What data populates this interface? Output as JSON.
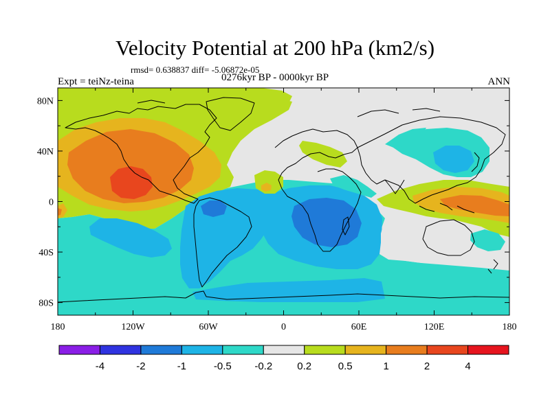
{
  "figure": {
    "title": "Velocity Potential at 200 hPa (km2/s)",
    "stats": "rmsd= 0.638837 diff= -5.06872e-05",
    "left_string": "Expt = teiNz-teina",
    "center_string": "0276kyr BP - 0000kyr BP",
    "right_string": "ANN"
  },
  "map": {
    "projection": "cylindrical equidistant",
    "lon_range": [
      -180,
      180
    ],
    "lat_range": [
      -90,
      90
    ],
    "lon_ticks": [
      {
        "value": -180,
        "label": "180"
      },
      {
        "value": -120,
        "label": "120W"
      },
      {
        "value": -60,
        "label": "60W"
      },
      {
        "value": 0,
        "label": "0"
      },
      {
        "value": 60,
        "label": "60E"
      },
      {
        "value": 120,
        "label": "120E"
      },
      {
        "value": 180,
        "label": "180"
      }
    ],
    "lat_ticks": [
      {
        "value": 80,
        "label": "80N"
      },
      {
        "value": 40,
        "label": "40N"
      },
      {
        "value": 0,
        "label": "0"
      },
      {
        "value": -40,
        "label": "40S"
      },
      {
        "value": -80,
        "label": "80S"
      }
    ],
    "fields": [
      {
        "name": "eastern-pacific-maximum",
        "level": "1 to 2",
        "lon": -125,
        "lat": 10
      },
      {
        "name": "south-atlantic-minimum",
        "level": "-0.5 to -1",
        "lon": -45,
        "lat": -5
      },
      {
        "name": "indian-ocean-minimum",
        "level": "-1 to -2",
        "lon": 40,
        "lat": -15
      },
      {
        "name": "western-pacific-maximum",
        "level": "0.5 to 1",
        "lon": 160,
        "lat": 0
      },
      {
        "name": "east-asia-minimum",
        "level": "-0.2 to -0.5",
        "lon": 125,
        "lat": 35
      }
    ]
  },
  "colorbar": {
    "colors": [
      "#8a1ee6",
      "#2f33e0",
      "#1f7ad8",
      "#1eb4e6",
      "#2ed8c8",
      "#e6e6e6",
      "#b8dc1e",
      "#e6b41e",
      "#e87d1e",
      "#e8461e",
      "#e6141e"
    ],
    "labels": [
      "-4",
      "-2",
      "-1",
      "-0.5",
      "-0.2",
      "0.2",
      "0.5",
      "1",
      "2",
      "4"
    ]
  }
}
